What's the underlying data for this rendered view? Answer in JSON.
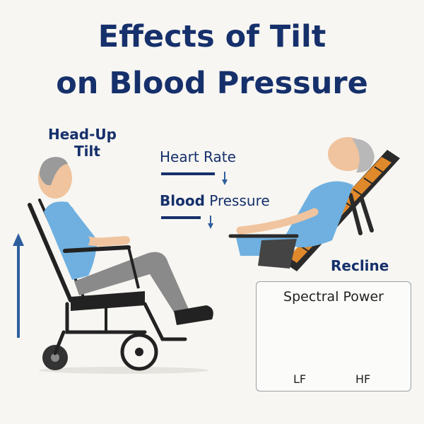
{
  "title": {
    "line1": "Effects of Tilt",
    "line2": "on Blood Pressure"
  },
  "left": {
    "label_line1": "Head-Up",
    "label_line2": "Tilt"
  },
  "effects": [
    {
      "label": "Heart Rate",
      "trend": "down"
    },
    {
      "label_bold": "Blood",
      "label_rest": " Pressure",
      "trend": "down"
    }
  ],
  "right": {
    "label": "Recline"
  },
  "spectral": {
    "title": "Spectral Power",
    "bands": [
      "LF",
      "HF"
    ]
  },
  "colors": {
    "title": "#16306b",
    "arrow": "#2e5e9e",
    "shirt": "#6fb0e0",
    "pants": "#8a8a8a",
    "frame": "#222222",
    "cushion": "#e0892b",
    "spectrum_fill": "#6d9ec1"
  }
}
